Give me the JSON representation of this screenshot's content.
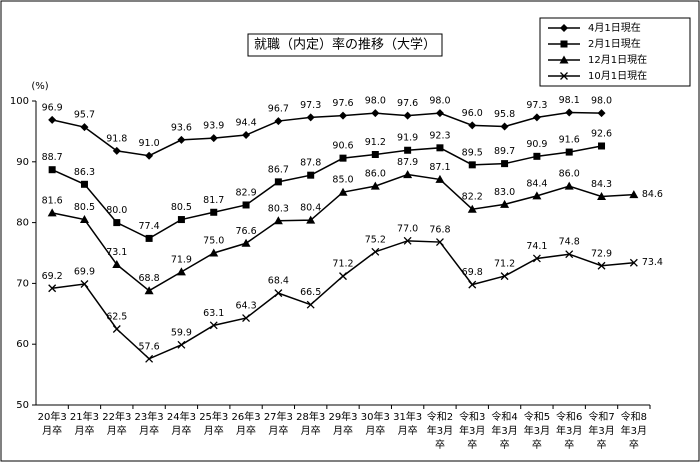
{
  "chart_data": {
    "type": "line",
    "title": "就職（内定）率の推移（大学）",
    "y_unit": "(%)",
    "categories": [
      "20年3月卒",
      "21年3月卒",
      "22年3月卒",
      "23年3月卒",
      "24年3月卒",
      "25年3月卒",
      "26年3月卒",
      "27年3月卒",
      "28年3月卒",
      "29年3月卒",
      "30年3月卒",
      "31年3月卒",
      "令和2年3月卒",
      "令和3年3月卒",
      "令和4年3月卒",
      "令和5年3月卒",
      "令和6年3月卒",
      "令和7年3月卒",
      "令和8年3月卒"
    ],
    "series": [
      {
        "name": "4月1日現在",
        "color": "#000000",
        "marker": "diamond",
        "values": [
          96.9,
          95.7,
          91.8,
          91.0,
          93.6,
          93.9,
          94.4,
          96.7,
          97.3,
          97.6,
          98.0,
          97.6,
          98.0,
          96.0,
          95.8,
          97.3,
          98.1,
          98.0,
          null
        ],
        "value_labels": [
          "96.9",
          "95.7",
          "91.8",
          "91.0",
          "93.6",
          "93.9",
          "94.4",
          "96.7",
          "97.3",
          "97.6",
          "98.0",
          "97.6",
          "98.0",
          "96.0",
          "95.8",
          "97.3",
          "98.1",
          "98.0",
          null
        ]
      },
      {
        "name": "2月1日現在",
        "color": "#000000",
        "marker": "square",
        "values": [
          88.7,
          86.3,
          80.0,
          77.4,
          80.5,
          81.7,
          82.9,
          86.7,
          87.8,
          90.6,
          91.2,
          91.9,
          92.3,
          89.5,
          89.7,
          90.9,
          91.6,
          92.6,
          null
        ],
        "value_labels": [
          "88.7",
          "86.3",
          "80.0",
          "77.4",
          "80.5",
          "81.7",
          "82.9",
          "86.7",
          "87.8",
          "90.6",
          "91.2",
          "91.9",
          "92.3",
          "89.5",
          "89.7",
          "90.9",
          "91.6",
          "92.6",
          null
        ]
      },
      {
        "name": "12月1日現在",
        "color": "#000000",
        "marker": "triangle",
        "values": [
          81.6,
          80.5,
          73.1,
          68.8,
          71.9,
          75.0,
          76.6,
          80.3,
          80.4,
          85.0,
          86.0,
          87.9,
          87.1,
          82.2,
          83.0,
          84.4,
          86.0,
          84.3,
          84.6
        ],
        "value_labels": [
          "81.6",
          "80.5",
          "73.1",
          "68.8",
          "71.9",
          "75.0",
          "76.6",
          "80.3",
          "80.4",
          "85.0",
          "86.0",
          "87.9",
          "87.1",
          "82.2",
          "83.0",
          "84.4",
          "86.0",
          "84.3",
          "84.6"
        ]
      },
      {
        "name": "10月1日現在",
        "color": "#000000",
        "marker": "x",
        "values": [
          69.2,
          69.9,
          62.5,
          57.6,
          59.9,
          63.1,
          64.3,
          68.4,
          66.5,
          71.2,
          75.2,
          77.0,
          76.8,
          69.8,
          71.2,
          74.1,
          74.8,
          72.9,
          73.4
        ],
        "value_labels": [
          "69.2",
          "69.9",
          "62.5",
          "57.6",
          "59.9",
          "63.1",
          "64.3",
          "68.4",
          "66.5",
          "71.2",
          "75.2",
          "77.0",
          "76.8",
          "69.8",
          "71.2",
          "74.1",
          "74.8",
          "72.9",
          "73.4"
        ]
      }
    ],
    "ylim": [
      50,
      100
    ],
    "yticks": [
      50,
      60,
      70,
      80,
      90,
      100
    ],
    "grid": false,
    "legend": "upper right"
  }
}
